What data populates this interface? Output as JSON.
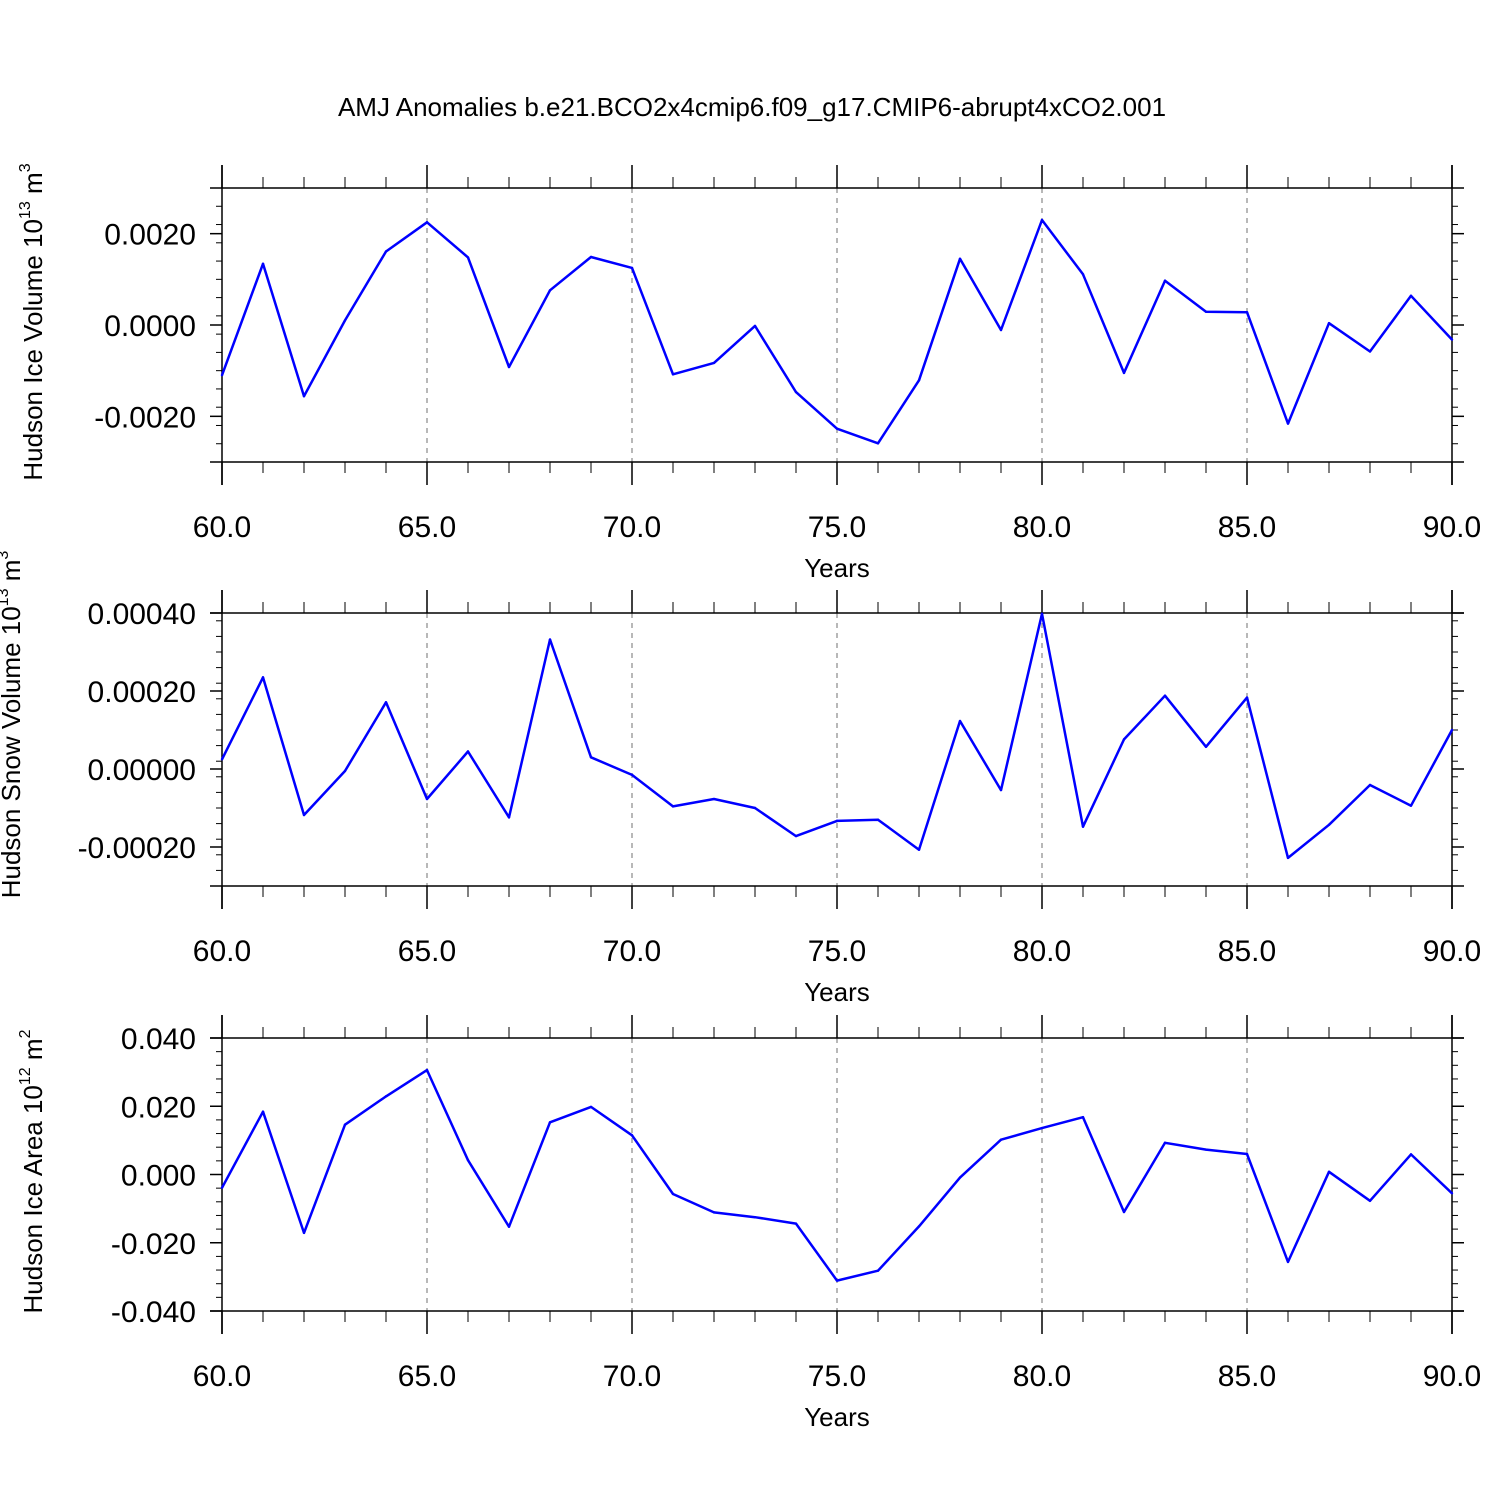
{
  "title": "AMJ Anomalies b.e21.BCO2x4cmip6.f09_g17.CMIP6-abrupt4xCO2.001",
  "chart_data": [
    {
      "type": "line",
      "title": "",
      "ylabel": {
        "prefix": "Hudson Ice Volume 10",
        "exp": "13",
        "unit": " m",
        "unit_exp": "3"
      },
      "xlabel": "Years",
      "xlim": [
        60,
        90
      ],
      "ylim": [
        -0.003,
        0.003
      ],
      "xticks": [
        60,
        65,
        70,
        75,
        80,
        85,
        90
      ],
      "xtick_labels": [
        "60.0",
        "65.0",
        "70.0",
        "75.0",
        "80.0",
        "85.0",
        "90.0"
      ],
      "yticks": [
        -0.002,
        0.0,
        0.002
      ],
      "ytick_labels": [
        "-0.0020",
        "0.0000",
        "0.0020"
      ],
      "grid": "vertical dashed at major x ticks",
      "color": "#0000ff",
      "series": [
        {
          "x": [
            60,
            61,
            62,
            63,
            64,
            65,
            66,
            67,
            68,
            69,
            70,
            71,
            72,
            73,
            74,
            75,
            76,
            77,
            78,
            79,
            80,
            81,
            82,
            83,
            84,
            85,
            86,
            87,
            88,
            89,
            90
          ],
          "values": [
            -0.0011,
            0.00134,
            -0.00156,
            0.0001,
            0.00161,
            0.00225,
            0.00148,
            -0.00092,
            0.00076,
            0.00149,
            0.00125,
            -0.00108,
            -0.00083,
            -2e-05,
            -0.00147,
            -0.00227,
            -0.00259,
            -0.00121,
            0.00145,
            -0.00011,
            0.0023,
            0.00111,
            -0.00105,
            0.00097,
            0.00029,
            0.00028,
            -0.00216,
            4e-05,
            -0.00058,
            0.00064,
            -0.00032
          ]
        }
      ]
    },
    {
      "type": "line",
      "title": "",
      "ylabel": {
        "prefix": "Hudson Snow Volume 10",
        "exp": "13",
        "unit": " m",
        "unit_exp": "3"
      },
      "xlabel": "Years",
      "xlim": [
        60,
        90
      ],
      "ylim": [
        -0.0003,
        0.0004
      ],
      "xticks": [
        60,
        65,
        70,
        75,
        80,
        85,
        90
      ],
      "xtick_labels": [
        "60.0",
        "65.0",
        "70.0",
        "75.0",
        "80.0",
        "85.0",
        "90.0"
      ],
      "yticks": [
        -0.0002,
        0.0,
        0.0002,
        0.0004
      ],
      "ytick_labels": [
        "-0.00020",
        "0.00000",
        "0.00020",
        "0.00040"
      ],
      "grid": "vertical dashed at major x ticks",
      "color": "#0000ff",
      "series": [
        {
          "x": [
            60,
            61,
            62,
            63,
            64,
            65,
            66,
            67,
            68,
            69,
            70,
            71,
            72,
            73,
            74,
            75,
            76,
            77,
            78,
            79,
            80,
            81,
            82,
            83,
            84,
            85,
            86,
            87,
            88,
            89,
            90
          ],
          "values": [
            2.5e-05,
            0.000235,
            -0.000118,
            -5e-06,
            0.000171,
            -7.7e-05,
            4.5e-05,
            -0.000124,
            0.000332,
            3e-05,
            -1.5e-05,
            -9.6e-05,
            -7.7e-05,
            -0.0001,
            -0.000172,
            -0.000133,
            -0.00013,
            -0.000207,
            0.000123,
            -5.4e-05,
            0.000398,
            -0.000148,
            7.6e-05,
            0.000188,
            5.7e-05,
            0.000183,
            -0.000228,
            -0.000143,
            -4.1e-05,
            -9.4e-05,
            0.0001
          ]
        }
      ]
    },
    {
      "type": "line",
      "title": "",
      "ylabel": {
        "prefix": "Hudson Ice Area 10",
        "exp": "12",
        "unit": " m",
        "unit_exp": "2"
      },
      "xlabel": "Years",
      "xlim": [
        60,
        90
      ],
      "ylim": [
        -0.04,
        0.04
      ],
      "xticks": [
        60,
        65,
        70,
        75,
        80,
        85,
        90
      ],
      "xtick_labels": [
        "60.0",
        "65.0",
        "70.0",
        "75.0",
        "80.0",
        "85.0",
        "90.0"
      ],
      "yticks": [
        -0.04,
        -0.02,
        0.0,
        0.02,
        0.04
      ],
      "ytick_labels": [
        "-0.040",
        "-0.020",
        "0.000",
        "0.020",
        "0.040"
      ],
      "grid": "vertical dashed at major x ticks",
      "color": "#0000ff",
      "series": [
        {
          "x": [
            60,
            61,
            62,
            63,
            64,
            65,
            66,
            67,
            68,
            69,
            70,
            71,
            72,
            73,
            74,
            75,
            76,
            77,
            78,
            79,
            80,
            81,
            82,
            83,
            84,
            85,
            86,
            87,
            88,
            89,
            90
          ],
          "values": [
            -0.0039,
            0.0184,
            -0.0171,
            0.0146,
            0.0229,
            0.0306,
            0.0042,
            -0.0153,
            0.0153,
            0.0198,
            0.0115,
            -0.0057,
            -0.0111,
            -0.0125,
            -0.0144,
            -0.0311,
            -0.0282,
            -0.0152,
            -0.0009,
            0.0102,
            0.0136,
            0.0168,
            -0.011,
            0.0093,
            0.0073,
            0.006,
            -0.0256,
            0.0008,
            -0.0077,
            0.0059,
            -0.0055
          ]
        }
      ]
    }
  ]
}
